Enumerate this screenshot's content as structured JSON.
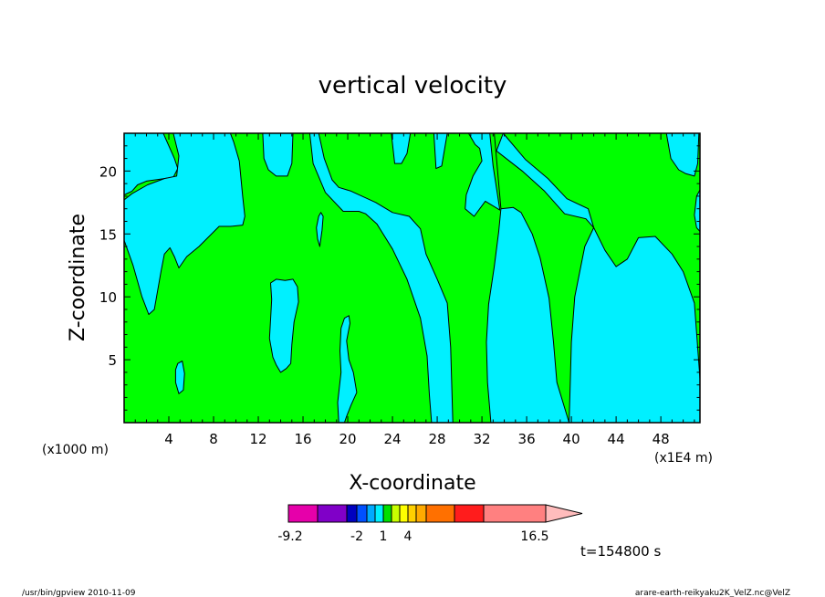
{
  "chart_data": {
    "type": "contour",
    "title": "vertical velocity",
    "xlabel": "X-coordinate",
    "ylabel": "Z-coordinate",
    "x_scale_left": "(x1000 m)",
    "x_scale_right": "(x1E4 m)",
    "xlim": [
      0,
      51.5
    ],
    "ylim": [
      0,
      23
    ],
    "x_ticks": [
      4,
      8,
      12,
      16,
      20,
      24,
      28,
      32,
      36,
      40,
      44,
      48
    ],
    "y_ticks": [
      5,
      10,
      15,
      20
    ],
    "background_color": "#00ff00",
    "region_color": "#00f0ff",
    "contour_color": "#000000",
    "regions": [
      {
        "name": "cyan-left",
        "points": [
          [
            0,
            23
          ],
          [
            3.5,
            23
          ],
          [
            4.5,
            21
          ],
          [
            4.8,
            20.2
          ],
          [
            4.4,
            19.5
          ],
          [
            2,
            19.2
          ],
          [
            1.2,
            18.9
          ],
          [
            0.7,
            18.4
          ],
          [
            0,
            18.1
          ]
        ]
      },
      {
        "name": "cyan-left",
        "points": [
          [
            0,
            14.5
          ],
          [
            0.8,
            12.5
          ],
          [
            1.6,
            10
          ],
          [
            2.2,
            8.6
          ],
          [
            2.7,
            9.0
          ],
          [
            3.3,
            12.0
          ],
          [
            3.6,
            13.4
          ],
          [
            4.1,
            13.9
          ],
          [
            4.5,
            13.2
          ],
          [
            4.9,
            12.3
          ],
          [
            5.6,
            13.2
          ],
          [
            6.7,
            14.0
          ],
          [
            8.5,
            15.6
          ],
          [
            9.5,
            15.6
          ],
          [
            10.6,
            15.7
          ],
          [
            10.8,
            16.4
          ],
          [
            10.6,
            18.0
          ],
          [
            10.3,
            20.8
          ],
          [
            9.8,
            22.3
          ],
          [
            9.5,
            23
          ],
          [
            4.4,
            23
          ],
          [
            4.9,
            21.2
          ],
          [
            4.7,
            19.6
          ],
          [
            3.6,
            19.4
          ],
          [
            2.1,
            18.9
          ],
          [
            0.7,
            18.2
          ],
          [
            0,
            17.7
          ]
        ]
      },
      {
        "name": "cyan-plume-12",
        "points": [
          [
            12.4,
            23
          ],
          [
            12.5,
            21
          ],
          [
            12.9,
            20.1
          ],
          [
            13.6,
            19.6
          ],
          [
            14.6,
            19.6
          ],
          [
            15.0,
            20.6
          ],
          [
            15.1,
            23
          ]
        ]
      },
      {
        "name": "cyan-plume-18",
        "points": [
          [
            17.4,
            23
          ],
          [
            17.9,
            21
          ],
          [
            18.6,
            19.3
          ],
          [
            19.2,
            18.7
          ],
          [
            20.3,
            18.4
          ],
          [
            22.5,
            17.5
          ],
          [
            24.0,
            16.7
          ],
          [
            25.5,
            16.4
          ],
          [
            26.5,
            15.4
          ],
          [
            27.0,
            13.4
          ],
          [
            28.0,
            11.4
          ],
          [
            28.9,
            9.5
          ],
          [
            29.2,
            6.0
          ],
          [
            29.3,
            3.0
          ],
          [
            29.4,
            0
          ],
          [
            27.5,
            0
          ],
          [
            27.3,
            2.2
          ],
          [
            27.1,
            5.3
          ],
          [
            26.5,
            8.3
          ],
          [
            25.3,
            11.4
          ],
          [
            24.0,
            13.8
          ],
          [
            22.6,
            15.8
          ],
          [
            21.6,
            16.6
          ],
          [
            21.0,
            16.8
          ],
          [
            19.6,
            16.8
          ],
          [
            18.0,
            18.3
          ],
          [
            16.9,
            20.6
          ],
          [
            16.6,
            23
          ]
        ]
      },
      {
        "name": "cyan-plume-24",
        "points": [
          [
            23.9,
            23
          ],
          [
            24.2,
            20.6
          ],
          [
            24.8,
            20.6
          ],
          [
            25.3,
            21.4
          ],
          [
            25.6,
            23
          ]
        ]
      },
      {
        "name": "cyan-plume-28",
        "points": [
          [
            27.7,
            23
          ],
          [
            27.9,
            20.2
          ],
          [
            28.4,
            20.4
          ],
          [
            28.9,
            23
          ]
        ]
      },
      {
        "name": "cyan-right",
        "points": [
          [
            30.8,
            23
          ],
          [
            31.4,
            22.1
          ],
          [
            31.8,
            21.8
          ],
          [
            32.0,
            20.8
          ],
          [
            31.2,
            19.6
          ],
          [
            30.6,
            18.1
          ],
          [
            30.5,
            17.0
          ],
          [
            31.3,
            16.4
          ],
          [
            32.3,
            17.6
          ],
          [
            33.6,
            16.9
          ],
          [
            33.0,
            20.4
          ],
          [
            32.7,
            23
          ]
        ]
      },
      {
        "name": "cyan-right",
        "points": [
          [
            33.1,
            23
          ],
          [
            33.7,
            17.0
          ],
          [
            34.8,
            17.1
          ],
          [
            35.5,
            16.7
          ],
          [
            36.5,
            15.0
          ],
          [
            37.2,
            13.1
          ],
          [
            38.0,
            9.9
          ],
          [
            38.4,
            6.4
          ],
          [
            38.7,
            3.2
          ],
          [
            39.8,
            0
          ],
          [
            32.8,
            0
          ],
          [
            32.5,
            3.2
          ],
          [
            32.4,
            6.4
          ],
          [
            32.6,
            9.4
          ],
          [
            33.1,
            12.4
          ],
          [
            33.5,
            15.2
          ],
          [
            33.7,
            17.0
          ]
        ]
      },
      {
        "name": "cyan-right",
        "points": [
          [
            33.9,
            23
          ],
          [
            35.9,
            20.9
          ],
          [
            37.9,
            19.4
          ],
          [
            39.6,
            17.8
          ],
          [
            41.5,
            17.0
          ],
          [
            42.0,
            15.5
          ],
          [
            43.0,
            13.7
          ],
          [
            44.0,
            12.4
          ],
          [
            45.0,
            13.0
          ],
          [
            46.0,
            14.7
          ],
          [
            47.5,
            14.8
          ],
          [
            49.0,
            13.4
          ],
          [
            50.0,
            12.0
          ],
          [
            51.0,
            9.5
          ],
          [
            51.5,
            3.5
          ],
          [
            51.5,
            0
          ],
          [
            39.8,
            0
          ],
          [
            39.9,
            3.2
          ],
          [
            40.0,
            6.4
          ],
          [
            40.3,
            10.0
          ],
          [
            41.2,
            14.0
          ],
          [
            42.0,
            15.5
          ],
          [
            41.3,
            16.2
          ],
          [
            39.4,
            16.6
          ],
          [
            37.6,
            18.4
          ],
          [
            35.6,
            20.0
          ],
          [
            33.3,
            21.6
          ]
        ]
      },
      {
        "name": "cyan-right-top",
        "points": [
          [
            48.5,
            23
          ],
          [
            48.9,
            21
          ],
          [
            49.6,
            20.1
          ],
          [
            50.2,
            19.8
          ],
          [
            51.0,
            19.6
          ],
          [
            51.3,
            20.6
          ],
          [
            51.4,
            23
          ]
        ]
      },
      {
        "name": "cyan-right-edge",
        "points": [
          [
            51.5,
            18.5
          ],
          [
            51.2,
            18.0
          ],
          [
            51.0,
            16.5
          ],
          [
            51.2,
            15.5
          ],
          [
            51.5,
            15.2
          ]
        ]
      },
      {
        "name": "cyan-small-5",
        "points": [
          [
            4.8,
            4.7
          ],
          [
            5.2,
            4.9
          ],
          [
            5.4,
            3.9
          ],
          [
            5.3,
            2.6
          ],
          [
            4.9,
            2.3
          ],
          [
            4.6,
            3.2
          ],
          [
            4.6,
            4.2
          ]
        ]
      },
      {
        "name": "cyan-mid-14",
        "points": [
          [
            13.1,
            11.1
          ],
          [
            13.6,
            11.4
          ],
          [
            14.4,
            11.3
          ],
          [
            15.1,
            11.4
          ],
          [
            15.5,
            10.8
          ],
          [
            15.6,
            9.6
          ],
          [
            15.2,
            8.0
          ],
          [
            15.0,
            6.2
          ],
          [
            14.9,
            4.7
          ],
          [
            14.5,
            4.3
          ],
          [
            14.0,
            4.0
          ],
          [
            13.6,
            4.6
          ],
          [
            13.3,
            5.2
          ],
          [
            13.0,
            6.7
          ],
          [
            13.1,
            8.2
          ],
          [
            13.2,
            9.8
          ]
        ]
      },
      {
        "name": "cyan-small-17",
        "points": [
          [
            17.4,
            16.4
          ],
          [
            17.6,
            16.7
          ],
          [
            17.8,
            16.4
          ],
          [
            17.7,
            15.3
          ],
          [
            17.5,
            14.0
          ],
          [
            17.3,
            14.6
          ],
          [
            17.2,
            15.5
          ]
        ]
      },
      {
        "name": "cyan-mid-19",
        "points": [
          [
            19.7,
            8.3
          ],
          [
            20.1,
            8.5
          ],
          [
            20.2,
            7.9
          ],
          [
            19.9,
            6.5
          ],
          [
            20.1,
            5.0
          ],
          [
            20.5,
            4.0
          ],
          [
            20.8,
            2.4
          ],
          [
            20.3,
            1.4
          ],
          [
            19.9,
            0.5
          ],
          [
            19.7,
            0
          ],
          [
            19.2,
            0
          ],
          [
            19.1,
            1.6
          ],
          [
            19.4,
            4.0
          ],
          [
            19.3,
            5.7
          ],
          [
            19.4,
            7.5
          ]
        ]
      }
    ],
    "colorbar": {
      "colors": [
        "#e600aa",
        "#8000c8",
        "#0000c0",
        "#0050ff",
        "#00aaff",
        "#00f0ff",
        "#00e000",
        "#c8ff00",
        "#ffff00",
        "#ffd000",
        "#ffaa00",
        "#ff7000",
        "#ff1c1c",
        "#ff8080",
        "#ffbcbc"
      ],
      "tick_labels": [
        {
          "text": "-9.2",
          "index": 0
        },
        {
          "text": "-2",
          "index": 3
        },
        {
          "text": "1",
          "index": 6
        },
        {
          "text": "4",
          "index": 9
        },
        {
          "text": "16.5",
          "index": 14
        }
      ]
    },
    "time_label": "t=154800 s"
  },
  "footer": {
    "left": "/usr/bin/gpview   2010-11-09",
    "right": "arare-earth-reikyaku2K_VelZ.nc@VelZ"
  }
}
